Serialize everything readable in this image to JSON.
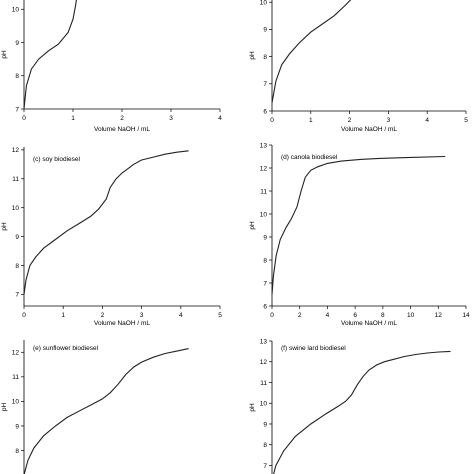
{
  "chart_data": [
    {
      "type": "line",
      "title": "",
      "xlabel": "Volume NaOH / mL",
      "ylabel": "pH",
      "xlim": [
        0,
        4
      ],
      "ylim": [
        7,
        11
      ],
      "xticks": [
        "0",
        "1",
        "2",
        "3",
        "4"
      ],
      "yticks": [
        "7",
        "8",
        "9",
        "10"
      ],
      "series": [
        {
          "x": [
            0,
            0.05,
            0.15,
            0.3,
            0.5,
            0.7,
            0.9,
            1.0,
            1.05,
            1.1,
            1.15,
            1.2
          ],
          "y": [
            7.0,
            7.7,
            8.2,
            8.5,
            8.75,
            8.95,
            9.3,
            9.7,
            10.1,
            10.6,
            11.0,
            11.3
          ]
        }
      ]
    },
    {
      "type": "line",
      "title": "",
      "xlabel": "Volume NaOH / mL",
      "ylabel": "pH",
      "xlim": [
        0,
        5
      ],
      "ylim": [
        6,
        11
      ],
      "xticks": [
        "0",
        "1",
        "2",
        "3",
        "4",
        "5"
      ],
      "yticks": [
        "6",
        "7",
        "8",
        "9",
        "10"
      ],
      "series": [
        {
          "x": [
            0,
            0.1,
            0.25,
            0.45,
            0.7,
            1.0,
            1.3,
            1.6,
            1.9,
            2.1,
            2.3,
            2.4
          ],
          "y": [
            6.3,
            7.1,
            7.7,
            8.1,
            8.5,
            8.9,
            9.2,
            9.5,
            9.9,
            10.2,
            10.5,
            10.8
          ]
        }
      ]
    },
    {
      "type": "line",
      "title": "(c) soy biodiesel",
      "xlabel": "Volume NaOH / mL",
      "ylabel": "pH",
      "xlim": [
        0,
        5
      ],
      "ylim": [
        6.6,
        12.1
      ],
      "xticks": [
        "0",
        "1",
        "2",
        "3",
        "4",
        "5"
      ],
      "yticks": [
        "7",
        "8",
        "9",
        "10",
        "11",
        "12"
      ],
      "series": [
        {
          "x": [
            0,
            0.05,
            0.15,
            0.3,
            0.5,
            0.8,
            1.1,
            1.4,
            1.7,
            1.9,
            2.1,
            2.2,
            2.35,
            2.5,
            2.65,
            2.8,
            3.0,
            3.3,
            3.6,
            3.9,
            4.2
          ],
          "y": [
            7.0,
            7.5,
            8.0,
            8.3,
            8.6,
            8.9,
            9.2,
            9.45,
            9.7,
            9.95,
            10.3,
            10.7,
            11.0,
            11.2,
            11.35,
            11.5,
            11.65,
            11.75,
            11.85,
            11.92,
            11.97
          ]
        }
      ]
    },
    {
      "type": "line",
      "title": "(d) canola biodiesel",
      "xlabel": "Volume NaOH / mL",
      "ylabel": "pH",
      "xlim": [
        0,
        14
      ],
      "ylim": [
        6,
        13
      ],
      "xticks": [
        "0",
        "2",
        "4",
        "6",
        "8",
        "10",
        "12",
        "14"
      ],
      "yticks": [
        "6",
        "7",
        "8",
        "9",
        "10",
        "11",
        "12",
        "13"
      ],
      "series": [
        {
          "x": [
            0,
            0.1,
            0.3,
            0.6,
            1.0,
            1.4,
            1.8,
            2.1,
            2.4,
            2.8,
            3.3,
            4.0,
            5.0,
            6.5,
            8.0,
            10.0,
            12.5
          ],
          "y": [
            6.5,
            7.3,
            8.2,
            8.9,
            9.4,
            9.8,
            10.3,
            11.0,
            11.6,
            11.9,
            12.05,
            12.2,
            12.3,
            12.38,
            12.42,
            12.46,
            12.5
          ]
        }
      ]
    },
    {
      "type": "line",
      "title": "(e) sunflower biodiesel",
      "xlabel": "",
      "ylabel": "pH",
      "xlim": [
        0,
        5
      ],
      "ylim": [
        6.8,
        12.5
      ],
      "xticks": [],
      "yticks": [
        "7",
        "8",
        "9",
        "10",
        "11",
        "12"
      ],
      "series": [
        {
          "x": [
            0,
            0.1,
            0.25,
            0.5,
            0.8,
            1.1,
            1.4,
            1.7,
            2.0,
            2.2,
            2.4,
            2.6,
            2.8,
            3.0,
            3.3,
            3.6,
            3.9,
            4.2
          ],
          "y": [
            7.0,
            7.6,
            8.1,
            8.6,
            9.0,
            9.35,
            9.6,
            9.85,
            10.1,
            10.35,
            10.7,
            11.1,
            11.4,
            11.6,
            11.8,
            11.95,
            12.05,
            12.15
          ]
        }
      ]
    },
    {
      "type": "line",
      "title": "(f) swine lard biodiesel",
      "xlabel": "",
      "ylabel": "pH",
      "xlim": [
        0,
        5
      ],
      "ylim": [
        6.3,
        13
      ],
      "xticks": [],
      "yticks": [
        "7",
        "8",
        "9",
        "10",
        "11",
        "12",
        "13"
      ],
      "series": [
        {
          "x": [
            0,
            0.1,
            0.3,
            0.6,
            1.0,
            1.4,
            1.7,
            1.9,
            2.05,
            2.2,
            2.35,
            2.5,
            2.7,
            2.9,
            3.1,
            3.4,
            3.7,
            4.0,
            4.3,
            4.6
          ],
          "y": [
            6.3,
            7.0,
            7.7,
            8.4,
            9.0,
            9.5,
            9.85,
            10.1,
            10.4,
            10.9,
            11.3,
            11.6,
            11.85,
            12.0,
            12.1,
            12.25,
            12.35,
            12.42,
            12.47,
            12.5
          ]
        }
      ]
    }
  ]
}
